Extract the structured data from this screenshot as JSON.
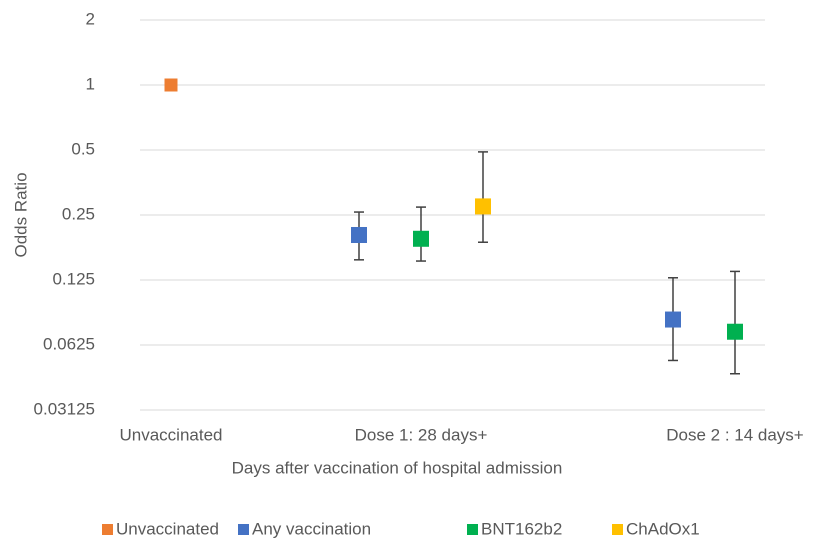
{
  "chart_data": {
    "type": "scatter",
    "x_label": "Days after vaccination of hospital admission",
    "y_label": "Odds Ratio",
    "categories": [
      "Unvaccinated",
      "Dose 1: 28 days+",
      "Dose 2 : 14 days+"
    ],
    "log_scale": "y",
    "log_base": 2,
    "grid": true,
    "legend": "bottom",
    "ylim": [
      0.03125,
      2
    ],
    "yticks": [
      0.03125,
      0.0625,
      0.125,
      0.25,
      0.5,
      1,
      2
    ],
    "series": [
      {
        "name": "Unvaccinated",
        "color": "#ed7d31",
        "values": [
          1,
          null,
          null
        ],
        "lower": [
          null,
          null,
          null
        ],
        "upper": [
          null,
          null,
          null
        ]
      },
      {
        "name": "Any vaccination",
        "color": "#4472c4",
        "values": [
          null,
          0.202,
          0.082
        ],
        "lower": [
          null,
          0.155,
          0.053
        ],
        "upper": [
          null,
          0.258,
          0.128
        ]
      },
      {
        "name": "BNT162b2",
        "color": "#00b050",
        "values": [
          null,
          0.194,
          0.072
        ],
        "lower": [
          null,
          0.153,
          0.046
        ],
        "upper": [
          null,
          0.272,
          0.137
        ]
      },
      {
        "name": "ChAdOx1",
        "color": "#ffc000",
        "values": [
          null,
          0.274,
          null
        ],
        "lower": [
          null,
          0.187,
          null
        ],
        "upper": [
          null,
          0.49,
          null
        ]
      }
    ]
  }
}
